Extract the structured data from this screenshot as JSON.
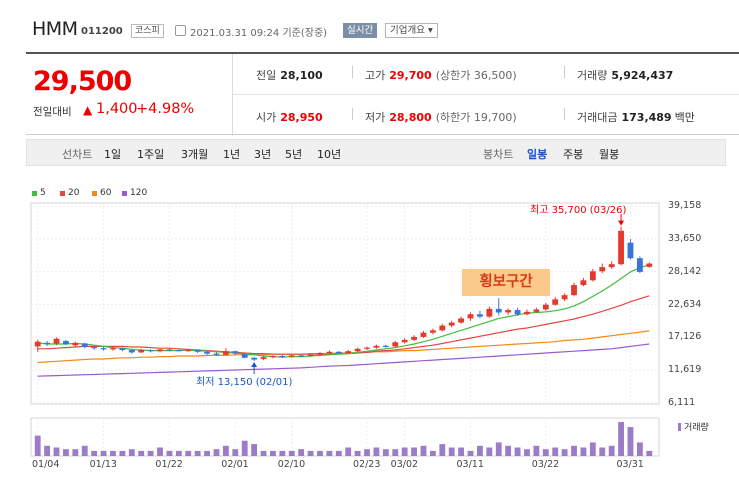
{
  "header": {
    "name": "HMM",
    "code": "011200",
    "market": "코스피",
    "datetime": "2021.03.31 09:24",
    "basis": "기준(장중)",
    "realtime": "실시간",
    "overview": "기업개요 ▾"
  },
  "quote": {
    "price": "29,500",
    "change_label": "전일대비",
    "change_arrow": "▲",
    "change": "1,400",
    "change_pct": "+4.98%",
    "prev_label": "전일",
    "prev": "28,100",
    "high_label": "고가",
    "high": "29,700",
    "upper_limit": "(상한가 36,500)",
    "volume_label": "거래량",
    "volume": "5,924,437",
    "open_label": "시가",
    "open": "28,950",
    "low_label": "저가",
    "low": "28,800",
    "lower_limit": "(하한가 19,700)",
    "amount_label": "거래대금",
    "amount": "173,489",
    "amount_unit": "백만"
  },
  "tabs": {
    "line_label": "선차트",
    "line_periods": [
      "1일",
      "1주일",
      "3개월",
      "1년",
      "3년",
      "5년",
      "10년"
    ],
    "candle_label": "봉차트",
    "candle_periods": [
      "일봉",
      "주봉",
      "월봉"
    ],
    "selected_candle": "일봉"
  },
  "chart_data": {
    "type": "candlestick",
    "legend": [
      {
        "name": "5",
        "color": "#3fbf3f"
      },
      {
        "name": "20",
        "color": "#e84545"
      },
      {
        "name": "60",
        "color": "#f08a1c"
      },
      {
        "name": "120",
        "color": "#9b59d0"
      }
    ],
    "y_ticks": [
      "39,158",
      "33,650",
      "28,142",
      "22,634",
      "17,126",
      "11,619",
      "6,111"
    ],
    "ylim": [
      6111,
      39158
    ],
    "x_ticks": [
      "01/04",
      "01/13",
      "01/22",
      "02/01",
      "02/10",
      "02/23",
      "03/02",
      "03/11",
      "03/22",
      "03/31"
    ],
    "high_annotation": "최고 35,700 (03/26)",
    "low_annotation": "최저 13,150 (02/01)",
    "callout": "횡보구간",
    "volume_label": "거래량",
    "candles": [
      {
        "o": 15600,
        "c": 16400,
        "h": 16700,
        "l": 14700
      },
      {
        "o": 16200,
        "c": 16000,
        "h": 16500,
        "l": 15700
      },
      {
        "o": 16100,
        "c": 16900,
        "h": 17100,
        "l": 15800
      },
      {
        "o": 16500,
        "c": 16000,
        "h": 16700,
        "l": 15800
      },
      {
        "o": 15800,
        "c": 16200,
        "h": 16400,
        "l": 15500
      },
      {
        "o": 16100,
        "c": 15500,
        "h": 16200,
        "l": 15300
      },
      {
        "o": 15500,
        "c": 15300,
        "h": 15700,
        "l": 15000
      },
      {
        "o": 15300,
        "c": 15100,
        "h": 15500,
        "l": 14900
      },
      {
        "o": 15100,
        "c": 15300,
        "h": 15500,
        "l": 14900
      },
      {
        "o": 15300,
        "c": 15000,
        "h": 15400,
        "l": 14800
      },
      {
        "o": 15000,
        "c": 14600,
        "h": 15100,
        "l": 14400
      },
      {
        "o": 14600,
        "c": 15000,
        "h": 15200,
        "l": 14500
      },
      {
        "o": 15000,
        "c": 14800,
        "h": 15100,
        "l": 14600
      },
      {
        "o": 14800,
        "c": 15100,
        "h": 15200,
        "l": 14600
      },
      {
        "o": 15100,
        "c": 15000,
        "h": 15200,
        "l": 14800
      },
      {
        "o": 15000,
        "c": 14900,
        "h": 15100,
        "l": 14800
      },
      {
        "o": 14900,
        "c": 15000,
        "h": 15100,
        "l": 14700
      },
      {
        "o": 15000,
        "c": 14700,
        "h": 15100,
        "l": 14500
      },
      {
        "o": 14700,
        "c": 14400,
        "h": 14800,
        "l": 14200
      },
      {
        "o": 14400,
        "c": 14200,
        "h": 14600,
        "l": 14000
      },
      {
        "o": 14200,
        "c": 14800,
        "h": 15300,
        "l": 14100
      },
      {
        "o": 14800,
        "c": 14400,
        "h": 14900,
        "l": 14200
      },
      {
        "o": 14300,
        "c": 13700,
        "h": 14400,
        "l": 13600
      },
      {
        "o": 13700,
        "c": 13400,
        "h": 13800,
        "l": 13150
      },
      {
        "o": 13500,
        "c": 13800,
        "h": 14000,
        "l": 13300
      },
      {
        "o": 13800,
        "c": 14000,
        "h": 14100,
        "l": 13600
      },
      {
        "o": 14000,
        "c": 13900,
        "h": 14200,
        "l": 13700
      },
      {
        "o": 13900,
        "c": 14100,
        "h": 14300,
        "l": 13700
      },
      {
        "o": 14100,
        "c": 14000,
        "h": 14200,
        "l": 13800
      },
      {
        "o": 14000,
        "c": 14200,
        "h": 14400,
        "l": 13900
      },
      {
        "o": 14200,
        "c": 14500,
        "h": 14700,
        "l": 14000
      },
      {
        "o": 14500,
        "c": 14700,
        "h": 14900,
        "l": 14300
      },
      {
        "o": 14700,
        "c": 14500,
        "h": 14800,
        "l": 14400
      },
      {
        "o": 14500,
        "c": 14800,
        "h": 15000,
        "l": 14400
      },
      {
        "o": 14800,
        "c": 15200,
        "h": 15400,
        "l": 14700
      },
      {
        "o": 15200,
        "c": 15400,
        "h": 15600,
        "l": 15000
      },
      {
        "o": 15400,
        "c": 15700,
        "h": 15900,
        "l": 15200
      },
      {
        "o": 15700,
        "c": 15600,
        "h": 15900,
        "l": 15400
      },
      {
        "o": 15600,
        "c": 16300,
        "h": 16500,
        "l": 15500
      },
      {
        "o": 16300,
        "c": 16700,
        "h": 17000,
        "l": 16100
      },
      {
        "o": 16700,
        "c": 17200,
        "h": 17500,
        "l": 16500
      },
      {
        "o": 17200,
        "c": 17900,
        "h": 18200,
        "l": 17000
      },
      {
        "o": 17900,
        "c": 18300,
        "h": 18600,
        "l": 17600
      },
      {
        "o": 18300,
        "c": 19100,
        "h": 19400,
        "l": 18100
      },
      {
        "o": 19100,
        "c": 19600,
        "h": 19900,
        "l": 18800
      },
      {
        "o": 19600,
        "c": 20300,
        "h": 20600,
        "l": 19400
      },
      {
        "o": 20300,
        "c": 21000,
        "h": 21300,
        "l": 19900
      },
      {
        "o": 21000,
        "c": 20600,
        "h": 21600,
        "l": 20300
      },
      {
        "o": 20600,
        "c": 21900,
        "h": 22300,
        "l": 20400
      },
      {
        "o": 21900,
        "c": 21300,
        "h": 23700,
        "l": 20800
      },
      {
        "o": 21300,
        "c": 21700,
        "h": 22000,
        "l": 20900
      },
      {
        "o": 21700,
        "c": 21000,
        "h": 22100,
        "l": 20700
      },
      {
        "o": 21000,
        "c": 21400,
        "h": 21800,
        "l": 20800
      },
      {
        "o": 21400,
        "c": 21800,
        "h": 22100,
        "l": 21200
      },
      {
        "o": 21800,
        "c": 22600,
        "h": 22900,
        "l": 21600
      },
      {
        "o": 22600,
        "c": 23500,
        "h": 23900,
        "l": 22400
      },
      {
        "o": 23500,
        "c": 24200,
        "h": 24500,
        "l": 23200
      },
      {
        "o": 24200,
        "c": 25900,
        "h": 26300,
        "l": 24000
      },
      {
        "o": 25900,
        "c": 26700,
        "h": 27100,
        "l": 25700
      },
      {
        "o": 26700,
        "c": 28200,
        "h": 28600,
        "l": 26500
      },
      {
        "o": 28200,
        "c": 28900,
        "h": 29500,
        "l": 27900
      },
      {
        "o": 28900,
        "c": 29400,
        "h": 29900,
        "l": 28600
      },
      {
        "o": 29400,
        "c": 35000,
        "h": 35700,
        "l": 29200
      },
      {
        "o": 33000,
        "c": 30400,
        "h": 33600,
        "l": 30200
      },
      {
        "o": 30400,
        "c": 28100,
        "h": 30700,
        "l": 27900
      },
      {
        "o": 28950,
        "c": 29500,
        "h": 29700,
        "l": 28800
      }
    ],
    "volumes": [
      12,
      6,
      5,
      4,
      4,
      6,
      3,
      3,
      3,
      3,
      4,
      3,
      3,
      5,
      3,
      3,
      3,
      3,
      3,
      4,
      6,
      4,
      9,
      7,
      3,
      3,
      3,
      3,
      4,
      3,
      3,
      3,
      3,
      5,
      3,
      4,
      5,
      4,
      4,
      5,
      5,
      6,
      3,
      7,
      5,
      5,
      3,
      6,
      5,
      8,
      6,
      5,
      4,
      6,
      4,
      5,
      4,
      6,
      5,
      8,
      5,
      6,
      20,
      17,
      8,
      3
    ],
    "ma5": [
      16200,
      16000,
      16000,
      16000,
      16100,
      16000,
      15800,
      15600,
      15400,
      15300,
      15100,
      15000,
      14900,
      14900,
      14900,
      14900,
      15000,
      14900,
      14800,
      14700,
      14600,
      14500,
      14300,
      14200,
      14000,
      13900,
      13800,
      13900,
      13900,
      14000,
      14100,
      14200,
      14300,
      14400,
      14600,
      14800,
      15000,
      15200,
      15400,
      15700,
      16000,
      16400,
      16800,
      17300,
      17800,
      18300,
      18800,
      19300,
      19800,
      20300,
      20600,
      20900,
      21200,
      21300,
      21400,
      21600,
      21900,
      22400,
      23100,
      24000,
      24900,
      25900,
      27000,
      28100,
      28800,
      29300
    ],
    "ma20": [
      15200,
      15200,
      15300,
      15400,
      15500,
      15600,
      15600,
      15600,
      15600,
      15600,
      15500,
      15500,
      15400,
      15300,
      15300,
      15200,
      15100,
      15000,
      14900,
      14800,
      14700,
      14600,
      14500,
      14400,
      14400,
      14300,
      14300,
      14300,
      14300,
      14300,
      14300,
      14300,
      14400,
      14400,
      14500,
      14600,
      14800,
      14900,
      15000,
      15200,
      15400,
      15600,
      15800,
      16100,
      16400,
      16700,
      17000,
      17300,
      17600,
      17900,
      18200,
      18500,
      18700,
      19000,
      19300,
      19600,
      19900,
      20200,
      20600,
      21000,
      21500,
      22000,
      22500,
      23100,
      23600,
      24100
    ],
    "ma60": [
      12900,
      13000,
      13100,
      13200,
      13300,
      13400,
      13500,
      13500,
      13600,
      13700,
      13700,
      13800,
      13800,
      13900,
      13900,
      14000,
      14000,
      14000,
      14100,
      14100,
      14100,
      14200,
      14200,
      14200,
      14200,
      14300,
      14300,
      14300,
      14300,
      14400,
      14400,
      14400,
      14500,
      14500,
      14600,
      14600,
      14700,
      14700,
      14800,
      14900,
      14900,
      15000,
      15100,
      15200,
      15300,
      15400,
      15500,
      15600,
      15700,
      15800,
      15900,
      16000,
      16100,
      16200,
      16300,
      16400,
      16600,
      16700,
      16800,
      17000,
      17200,
      17400,
      17600,
      17800,
      18000,
      18200
    ],
    "ma120": [
      10600,
      10650,
      10700,
      10750,
      10800,
      10850,
      10900,
      10950,
      11000,
      11050,
      11100,
      11150,
      11200,
      11250,
      11300,
      11350,
      11400,
      11450,
      11500,
      11550,
      11600,
      11650,
      11700,
      11750,
      11800,
      11850,
      11900,
      11950,
      12000,
      12100,
      12200,
      12300,
      12350,
      12400,
      12500,
      12600,
      12700,
      12800,
      12900,
      13000,
      13100,
      13200,
      13300,
      13400,
      13500,
      13600,
      13700,
      13800,
      13900,
      14000,
      14100,
      14200,
      14300,
      14400,
      14500,
      14600,
      14700,
      14800,
      14900,
      15000,
      15100,
      15200,
      15400,
      15600,
      15800,
      16000
    ]
  }
}
